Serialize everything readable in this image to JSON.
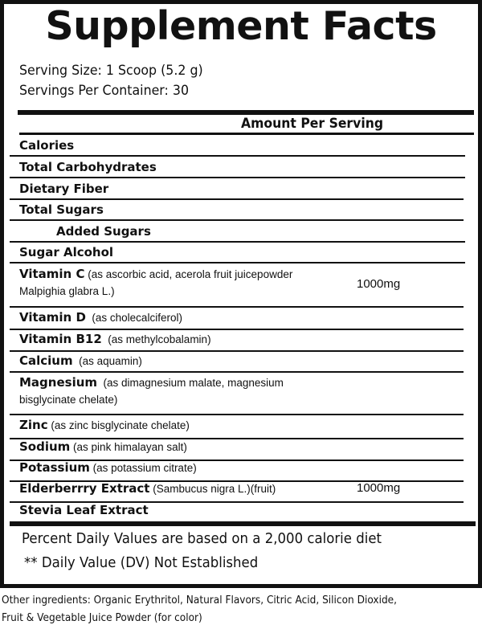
{
  "title": "Supplement Facts",
  "serving_size": "Serving Size: 1 Scoop (5.2 g)",
  "servings_per_container": "Servings Per Container: 30",
  "amount_header": "Amount Per Serving",
  "rows": [
    {
      "name": "Calories",
      "source": "",
      "amount": ""
    },
    {
      "name": "Total Carbohydrates",
      "source": "",
      "amount": ""
    },
    {
      "name": "Dietary Fiber",
      "source": "",
      "amount": ""
    },
    {
      "name": "Total Sugars",
      "source": "",
      "amount": ""
    },
    {
      "name": "Added Sugars",
      "source": "",
      "amount": ""
    },
    {
      "name": "Sugar Alcohol",
      "source": "",
      "amount": ""
    },
    {
      "name": "Vitamin C",
      "source": " (as ascorbic acid, acerola fruit juicepowder",
      "source2": "Malpighia glabra L.)",
      "amount": "1000mg"
    },
    {
      "name": "Vitamin D",
      "source": "  (as cholecalciferol)",
      "amount": ""
    },
    {
      "name": "Vitamin B12",
      "source": "  (as methylcobalamin)",
      "amount": ""
    },
    {
      "name": "Calcium",
      "source": "  (as aquamin)",
      "amount": ""
    },
    {
      "name": "Magnesium",
      "source": "  (as dimagnesium malate, magnesium",
      "source2": "bisglycinate chelate)",
      "amount": ""
    },
    {
      "name": "Zinc",
      "source": " (as zinc bisglycinate chelate)",
      "amount": ""
    },
    {
      "name": "Sodium",
      "source": " (as pink himalayan salt)",
      "amount": ""
    },
    {
      "name": "Potassium",
      "source": " (as potassium citrate)",
      "amount": ""
    },
    {
      "name": "Elderberrry Extract",
      "source": " (Sambucus nigra L.)(fruit)",
      "amount": "1000mg"
    },
    {
      "name": "Stevia Leaf Extract",
      "source": "",
      "amount": ""
    }
  ],
  "footnote_1": "Percent Daily Values are based on a 2,000 calorie diet",
  "footnote_2": "** Daily Value (DV) Not Established",
  "other_ingredients_1": "Other ingredients: Organic Erythritol, Natural Flavors, Citric Acid, Silicon Dioxide,",
  "other_ingredients_2": "Fruit & Vegetable Juice Powder (for color)"
}
